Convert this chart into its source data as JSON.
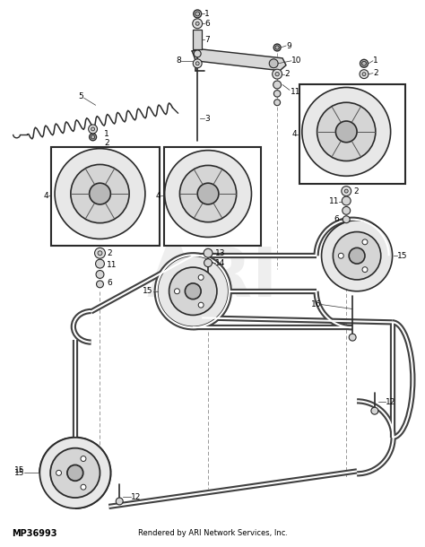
{
  "bg_color": "#ffffff",
  "line_color": "#2a2a2a",
  "part_number": "MP36993",
  "footer_text": "Rendered by ARI Network Services, Inc.",
  "figsize": [
    4.74,
    6.1
  ],
  "dpi": 100,
  "watermark": "ARI",
  "belt_color": "#404040",
  "belt_lw": 2.2,
  "pulley_outer_fc": "#e8e8e8",
  "pulley_mid_fc": "#d5d5d5",
  "pulley_hub_fc": "#b8b8b8"
}
